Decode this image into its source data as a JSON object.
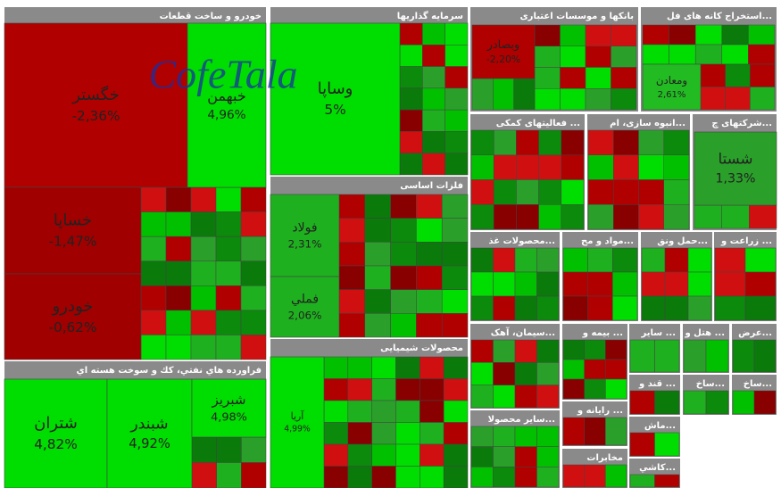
{
  "chart_data": {
    "type": "treemap",
    "watermark": "CofeTala",
    "groups": [
      {
        "name": "خودرو و ساخت قطعات",
        "tiles": [
          {
            "name": "خگستر",
            "value": -2.36,
            "value_label": "-2,36%",
            "color": "#b00000"
          },
          {
            "name": "خبهمن",
            "value": 4.96,
            "value_label": "4,96%",
            "color": "#00dd00"
          },
          {
            "name": "خساپا",
            "value": -1.47,
            "value_label": "-1,47%",
            "color": "#a00000"
          },
          {
            "name": "خودرو",
            "value": -0.62,
            "value_label": "-0,62%",
            "color": "#a00000"
          }
        ]
      },
      {
        "name": "فراورده هاي نفتي، كك و سوخت هسته اي",
        "tiles": [
          {
            "name": "شتران",
            "value": 4.82,
            "value_label": "4,82%",
            "color": "#00dd00"
          },
          {
            "name": "شبندر",
            "value": 4.92,
            "value_label": "4,92%",
            "color": "#00dd00"
          },
          {
            "name": "شبریز",
            "value": 4.98,
            "value_label": "4,98%",
            "color": "#00dd00"
          }
        ]
      },
      {
        "name": "سرمایه گذاریها",
        "tiles": [
          {
            "name": "وساپا",
            "value": 5,
            "value_label": "5%",
            "color": "#00dd00"
          }
        ]
      },
      {
        "name": "فلزات اساسی",
        "tiles": [
          {
            "name": "فولاد",
            "value": 2.31,
            "value_label": "2,31%",
            "color": "#1fb01f"
          },
          {
            "name": "فملي",
            "value": 2.06,
            "value_label": "2,06%",
            "color": "#1fb01f"
          }
        ]
      },
      {
        "name": "محصولات شیمیایی",
        "tiles": [
          {
            "name": "آریا",
            "value": 4.99,
            "value_label": "4,99%",
            "color": "#00dd00"
          }
        ]
      },
      {
        "name": "بانکها و موسسات اعتباری",
        "tiles": [
          {
            "name": "وبصادر",
            "value": -2.2,
            "value_label": "-2,20%",
            "color": "#b00000"
          }
        ]
      },
      {
        "name": "استخراج کانه های فل...",
        "tiles": [
          {
            "name": "ومعادن",
            "value": 2.61,
            "value_label": "2,61%",
            "color": "#22bb22"
          }
        ]
      },
      {
        "name": "فعالیتهای کمکی ...",
        "tiles": []
      },
      {
        "name": "انبوه سازی، ام...",
        "tiles": []
      },
      {
        "name": "شرکتهای چ...",
        "tiles": [
          {
            "name": "شستا",
            "value": 1.33,
            "value_label": "1,33%",
            "color": "#2aa02a"
          }
        ]
      },
      {
        "name": "محصولات غذ...",
        "tiles": []
      },
      {
        "name": "مواد و مح...",
        "tiles": []
      },
      {
        "name": "حمل ونق...",
        "tiles": []
      },
      {
        "name": "زراعت و ...",
        "tiles": []
      },
      {
        "name": "سیمان، آهک...",
        "tiles": []
      },
      {
        "name": "بیمه و ...",
        "tiles": []
      },
      {
        "name": "سایر ...",
        "tiles": []
      },
      {
        "name": "هتل و ...",
        "tiles": []
      },
      {
        "name": "عرض...",
        "tiles": []
      },
      {
        "name": "قند و ...",
        "tiles": []
      },
      {
        "name": "ساخ...",
        "tiles": []
      },
      {
        "name": "ساخ...",
        "tiles": []
      },
      {
        "name": "سایر محصولا...",
        "tiles": []
      },
      {
        "name": "رایانه و ...",
        "tiles": []
      },
      {
        "name": "مخابرات",
        "tiles": []
      },
      {
        "name": "ماش...",
        "tiles": []
      },
      {
        "name": "کاشي...",
        "tiles": []
      }
    ]
  }
}
